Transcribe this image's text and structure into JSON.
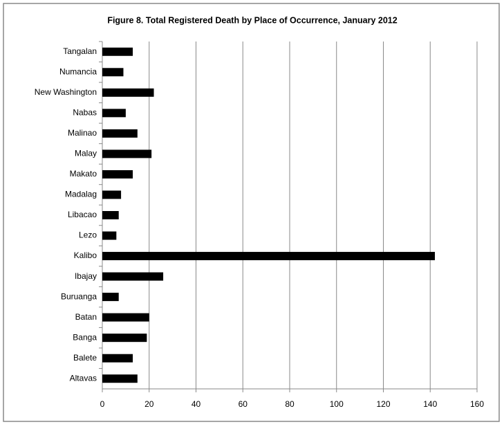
{
  "chart_data": {
    "type": "bar",
    "orientation": "horizontal",
    "title": "Figure 8. Total Registered Death by Place of Occurrence, January 2012",
    "categories": [
      "Tangalan",
      "Numancia",
      "New Washington",
      "Nabas",
      "Malinao",
      "Malay",
      "Makato",
      "Madalag",
      "Libacao",
      "Lezo",
      "Kalibo",
      "Ibajay",
      "Buruanga",
      "Batan",
      "Banga",
      "Balete",
      "Altavas"
    ],
    "values": [
      13,
      9,
      22,
      10,
      15,
      21,
      13,
      8,
      7,
      6,
      142,
      26,
      7,
      20,
      19,
      13,
      15
    ],
    "color": "#000000",
    "xlim": [
      0,
      160
    ],
    "xticks": [
      0,
      20,
      40,
      60,
      80,
      100,
      120,
      140,
      160
    ],
    "grid": true
  }
}
